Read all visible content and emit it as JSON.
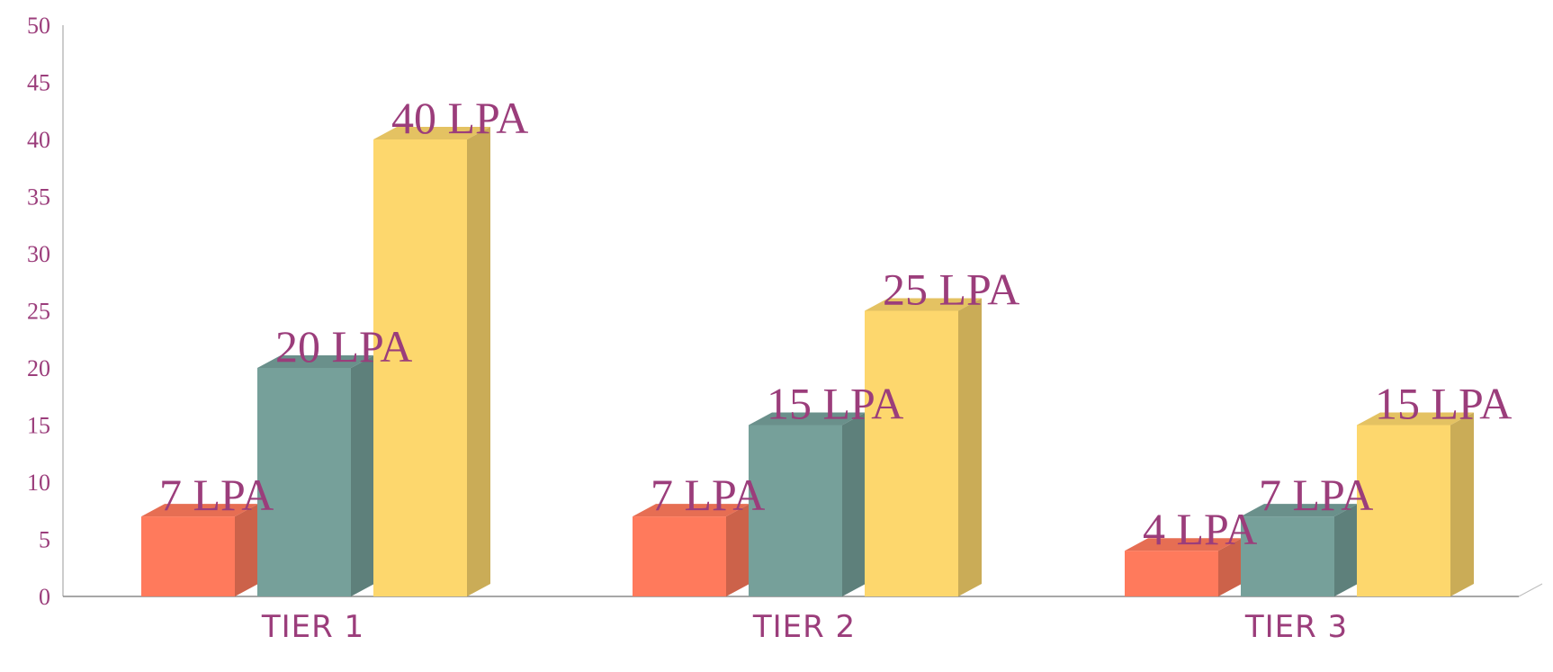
{
  "chart_data": {
    "type": "bar",
    "style": "3d-clustered-column",
    "title": "",
    "xlabel": "",
    "ylabel": "",
    "ylim": [
      0,
      50
    ],
    "yticks": [
      0,
      5,
      10,
      15,
      20,
      25,
      30,
      35,
      40,
      45,
      50
    ],
    "grid": false,
    "legend": "none",
    "categories": [
      "TIER 1",
      "TIER 2",
      "TIER 3"
    ],
    "series": [
      {
        "values": [
          7,
          7,
          4
        ],
        "data_labels": [
          "7 LPA",
          "7 LPA",
          "4 LPA"
        ],
        "color": "#FF7A5C"
      },
      {
        "values": [
          20,
          15,
          7
        ],
        "data_labels": [
          "20 LPA",
          "15 LPA",
          "7 LPA"
        ],
        "color": "#76A09A"
      },
      {
        "values": [
          40,
          25,
          15
        ],
        "data_labels": [
          "40 LPA",
          "25 LPA",
          "15 LPA"
        ],
        "color": "#FDD76D"
      }
    ],
    "label_color": "#9B3D7B"
  }
}
